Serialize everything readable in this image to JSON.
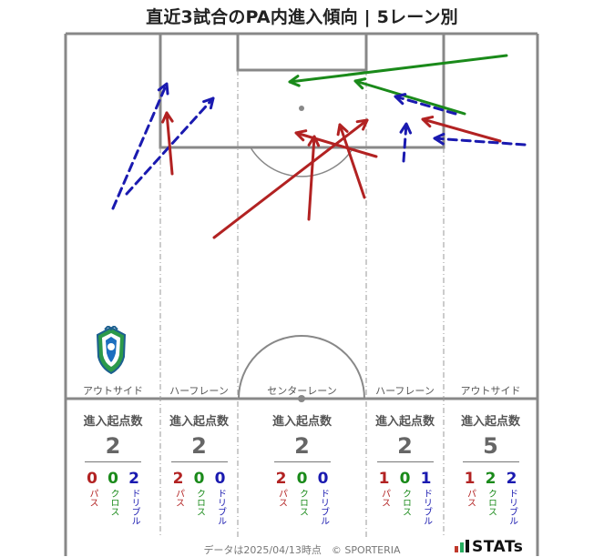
{
  "title": "直近3試合のPA内進入傾向 | 5レーン別",
  "lanes": [
    {
      "name": "アウトサイド",
      "label": "進入起点数",
      "total": "2",
      "pass": "0",
      "cross": "0",
      "dribble": "2"
    },
    {
      "name": "ハーフレーン",
      "label": "進入起点数",
      "total": "2",
      "pass": "2",
      "cross": "0",
      "dribble": "0"
    },
    {
      "name": "センターレーン",
      "label": "進入起点数",
      "total": "2",
      "pass": "2",
      "cross": "0",
      "dribble": "0"
    },
    {
      "name": "ハーフレーン",
      "label": "進入起点数",
      "total": "2",
      "pass": "1",
      "cross": "0",
      "dribble": "1"
    },
    {
      "name": "アウトサイド",
      "label": "進入起点数",
      "total": "5",
      "pass": "1",
      "cross": "2",
      "dribble": "2"
    }
  ],
  "type_labels": {
    "pass": "パス",
    "cross": "クロス",
    "dribble": "ドリブル"
  },
  "colors": {
    "pass": "#b22222",
    "cross": "#1a8a1a",
    "dribble": "#1a1ab0",
    "pitch_line": "#888888"
  },
  "footer": "データは2025/04/13時点　© SPORTERIA",
  "brand": "STATs",
  "crest_icon": "shonan-bellmare-crest-icon",
  "chart_data": {
    "type": "arrow-map",
    "arrows": [
      {
        "kind": "dribble",
        "from": [
          124,
          229
        ],
        "to": [
          183,
          92
        ]
      },
      {
        "kind": "dribble",
        "from": [
          139,
          213
        ],
        "to": [
          234,
          108
        ]
      },
      {
        "kind": "pass",
        "from": [
          189,
          191
        ],
        "to": [
          183,
          124
        ]
      },
      {
        "kind": "pass",
        "from": [
          235,
          261
        ],
        "to": [
          403,
          132
        ]
      },
      {
        "kind": "pass",
        "from": [
          339,
          241
        ],
        "to": [
          345,
          150
        ]
      },
      {
        "kind": "pass",
        "from": [
          413,
          172
        ],
        "to": [
          325,
          146
        ]
      },
      {
        "kind": "pass",
        "from": [
          400,
          217
        ],
        "to": [
          373,
          137
        ]
      },
      {
        "kind": "cross",
        "from": [
          556,
          61
        ],
        "to": [
          318,
          90
        ]
      },
      {
        "kind": "cross",
        "from": [
          510,
          125
        ],
        "to": [
          390,
          89
        ]
      },
      {
        "kind": "dribble",
        "from": [
          500,
          125
        ],
        "to": [
          434,
          106
        ]
      },
      {
        "kind": "pass",
        "from": [
          549,
          155
        ],
        "to": [
          464,
          131
        ]
      },
      {
        "kind": "dribble",
        "from": [
          576,
          159
        ],
        "to": [
          477,
          152
        ]
      },
      {
        "kind": "dribble",
        "from": [
          443,
          177
        ],
        "to": [
          446,
          136
        ]
      }
    ]
  }
}
